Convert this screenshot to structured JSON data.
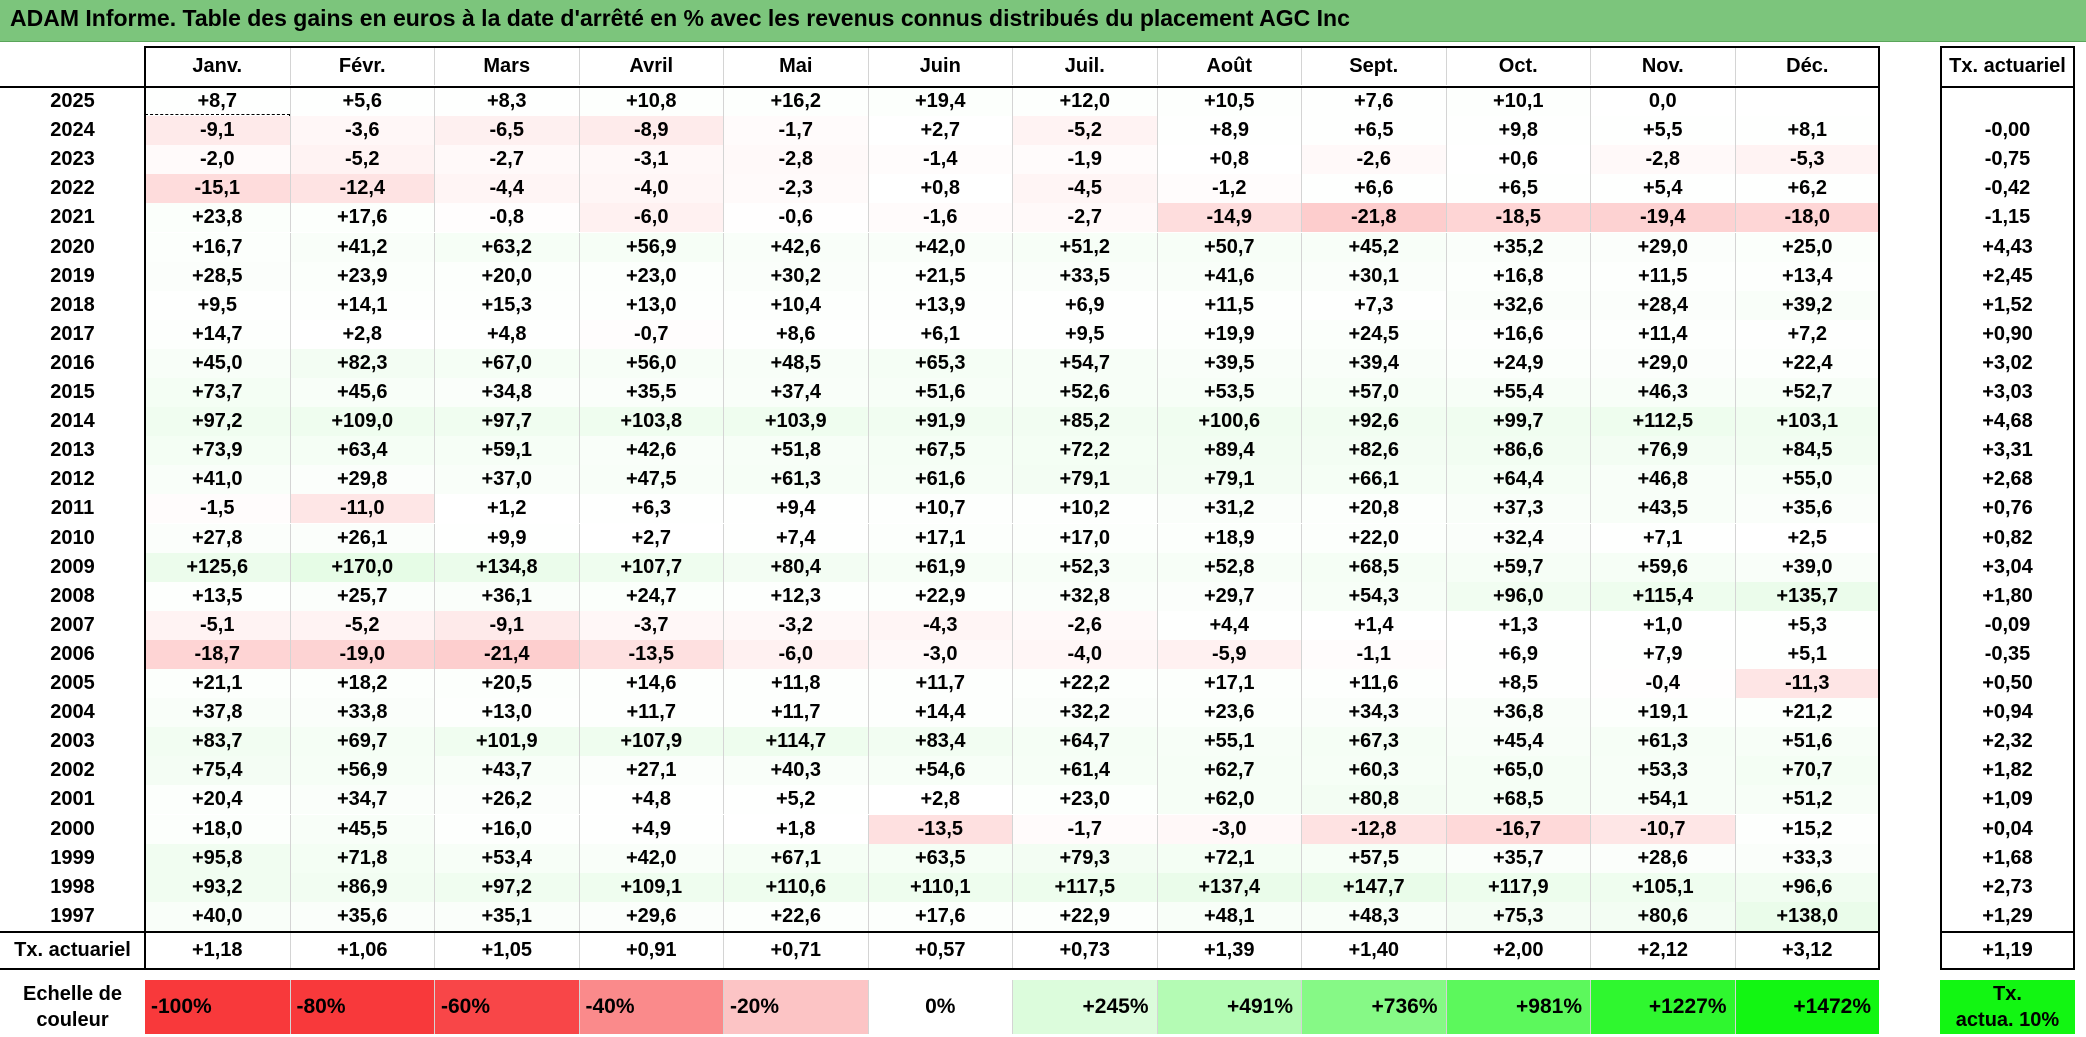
{
  "title": "ADAM Informe. Table des gains en euros à la date d'arrêté en % avec les revenus connus distribués du placement AGC Inc",
  "months": [
    "Janv.",
    "Févr.",
    "Mars",
    "Avril",
    "Mai",
    "Juin",
    "Juil.",
    "Août",
    "Sept.",
    "Oct.",
    "Nov.",
    "Déc."
  ],
  "rate_header": "Tx. actuariel",
  "rows": [
    {
      "year": "2025",
      "values": [
        "+8,7",
        "+5,6",
        "+8,3",
        "+10,8",
        "+16,2",
        "+19,4",
        "+12,0",
        "+10,5",
        "+7,6",
        "+10,1",
        "0,0",
        ""
      ],
      "rate": ""
    },
    {
      "year": "2024",
      "values": [
        "-9,1",
        "-3,6",
        "-6,5",
        "-8,9",
        "-1,7",
        "+2,7",
        "-5,2",
        "+8,9",
        "+6,5",
        "+9,8",
        "+5,5",
        "+8,1"
      ],
      "rate": "-0,00"
    },
    {
      "year": "2023",
      "values": [
        "-2,0",
        "-5,2",
        "-2,7",
        "-3,1",
        "-2,8",
        "-1,4",
        "-1,9",
        "+0,8",
        "-2,6",
        "+0,6",
        "-2,8",
        "-5,3"
      ],
      "rate": "-0,75"
    },
    {
      "year": "2022",
      "values": [
        "-15,1",
        "-12,4",
        "-4,4",
        "-4,0",
        "-2,3",
        "+0,8",
        "-4,5",
        "-1,2",
        "+6,6",
        "+6,5",
        "+5,4",
        "+6,2"
      ],
      "rate": "-0,42"
    },
    {
      "year": "2021",
      "values": [
        "+23,8",
        "+17,6",
        "-0,8",
        "-6,0",
        "-0,6",
        "-1,6",
        "-2,7",
        "-14,9",
        "-21,8",
        "-18,5",
        "-19,4",
        "-18,0"
      ],
      "rate": "-1,15"
    },
    {
      "year": "2020",
      "values": [
        "+16,7",
        "+41,2",
        "+63,2",
        "+56,9",
        "+42,6",
        "+42,0",
        "+51,2",
        "+50,7",
        "+45,2",
        "+35,2",
        "+29,0",
        "+25,0"
      ],
      "rate": "+4,43"
    },
    {
      "year": "2019",
      "values": [
        "+28,5",
        "+23,9",
        "+20,0",
        "+23,0",
        "+30,2",
        "+21,5",
        "+33,5",
        "+41,6",
        "+30,1",
        "+16,8",
        "+11,5",
        "+13,4"
      ],
      "rate": "+2,45"
    },
    {
      "year": "2018",
      "values": [
        "+9,5",
        "+14,1",
        "+15,3",
        "+13,0",
        "+10,4",
        "+13,9",
        "+6,9",
        "+11,5",
        "+7,3",
        "+32,6",
        "+28,4",
        "+39,2"
      ],
      "rate": "+1,52"
    },
    {
      "year": "2017",
      "values": [
        "+14,7",
        "+2,8",
        "+4,8",
        "-0,7",
        "+8,6",
        "+6,1",
        "+9,5",
        "+19,9",
        "+24,5",
        "+16,6",
        "+11,4",
        "+7,2"
      ],
      "rate": "+0,90"
    },
    {
      "year": "2016",
      "values": [
        "+45,0",
        "+82,3",
        "+67,0",
        "+56,0",
        "+48,5",
        "+65,3",
        "+54,7",
        "+39,5",
        "+39,4",
        "+24,9",
        "+29,0",
        "+22,4"
      ],
      "rate": "+3,02"
    },
    {
      "year": "2015",
      "values": [
        "+73,7",
        "+45,6",
        "+34,8",
        "+35,5",
        "+37,4",
        "+51,6",
        "+52,6",
        "+53,5",
        "+57,0",
        "+55,4",
        "+46,3",
        "+52,7"
      ],
      "rate": "+3,03"
    },
    {
      "year": "2014",
      "values": [
        "+97,2",
        "+109,0",
        "+97,7",
        "+103,8",
        "+103,9",
        "+91,9",
        "+85,2",
        "+100,6",
        "+92,6",
        "+99,7",
        "+112,5",
        "+103,1"
      ],
      "rate": "+4,68"
    },
    {
      "year": "2013",
      "values": [
        "+73,9",
        "+63,4",
        "+59,1",
        "+42,6",
        "+51,8",
        "+67,5",
        "+72,2",
        "+89,4",
        "+82,6",
        "+86,6",
        "+76,9",
        "+84,5"
      ],
      "rate": "+3,31"
    },
    {
      "year": "2012",
      "values": [
        "+41,0",
        "+29,8",
        "+37,0",
        "+47,5",
        "+61,3",
        "+61,6",
        "+79,1",
        "+79,1",
        "+66,1",
        "+64,4",
        "+46,8",
        "+55,0"
      ],
      "rate": "+2,68"
    },
    {
      "year": "2011",
      "values": [
        "-1,5",
        "-11,0",
        "+1,2",
        "+6,3",
        "+9,4",
        "+10,7",
        "+10,2",
        "+31,2",
        "+20,8",
        "+37,3",
        "+43,5",
        "+35,6"
      ],
      "rate": "+0,76"
    },
    {
      "year": "2010",
      "values": [
        "+27,8",
        "+26,1",
        "+9,9",
        "+2,7",
        "+7,4",
        "+17,1",
        "+17,0",
        "+18,9",
        "+22,0",
        "+32,4",
        "+7,1",
        "+2,5"
      ],
      "rate": "+0,82"
    },
    {
      "year": "2009",
      "values": [
        "+125,6",
        "+170,0",
        "+134,8",
        "+107,7",
        "+80,4",
        "+61,9",
        "+52,3",
        "+52,8",
        "+68,5",
        "+59,7",
        "+59,6",
        "+39,0"
      ],
      "rate": "+3,04"
    },
    {
      "year": "2008",
      "values": [
        "+13,5",
        "+25,7",
        "+36,1",
        "+24,7",
        "+12,3",
        "+22,9",
        "+32,8",
        "+29,7",
        "+54,3",
        "+96,0",
        "+115,4",
        "+135,7"
      ],
      "rate": "+1,80"
    },
    {
      "year": "2007",
      "values": [
        "-5,1",
        "-5,2",
        "-9,1",
        "-3,7",
        "-3,2",
        "-4,3",
        "-2,6",
        "+4,4",
        "+1,4",
        "+1,3",
        "+1,0",
        "+5,3"
      ],
      "rate": "-0,09"
    },
    {
      "year": "2006",
      "values": [
        "-18,7",
        "-19,0",
        "-21,4",
        "-13,5",
        "-6,0",
        "-3,0",
        "-4,0",
        "-5,9",
        "-1,1",
        "+6,9",
        "+7,9",
        "+5,1"
      ],
      "rate": "-0,35"
    },
    {
      "year": "2005",
      "values": [
        "+21,1",
        "+18,2",
        "+20,5",
        "+14,6",
        "+11,8",
        "+11,7",
        "+22,2",
        "+17,1",
        "+11,6",
        "+8,5",
        "-0,4",
        "-11,3"
      ],
      "rate": "+0,50"
    },
    {
      "year": "2004",
      "values": [
        "+37,8",
        "+33,8",
        "+13,0",
        "+11,7",
        "+11,7",
        "+14,4",
        "+32,2",
        "+23,6",
        "+34,3",
        "+36,8",
        "+19,1",
        "+21,2"
      ],
      "rate": "+0,94"
    },
    {
      "year": "2003",
      "values": [
        "+83,7",
        "+69,7",
        "+101,9",
        "+107,9",
        "+114,7",
        "+83,4",
        "+64,7",
        "+55,1",
        "+67,3",
        "+45,4",
        "+61,3",
        "+51,6"
      ],
      "rate": "+2,32"
    },
    {
      "year": "2002",
      "values": [
        "+75,4",
        "+56,9",
        "+43,7",
        "+27,1",
        "+40,3",
        "+54,6",
        "+61,4",
        "+62,7",
        "+60,3",
        "+65,0",
        "+53,3",
        "+70,7"
      ],
      "rate": "+1,82"
    },
    {
      "year": "2001",
      "values": [
        "+20,4",
        "+34,7",
        "+26,2",
        "+4,8",
        "+5,2",
        "+2,8",
        "+23,0",
        "+62,0",
        "+80,8",
        "+68,5",
        "+54,1",
        "+51,2"
      ],
      "rate": "+1,09"
    },
    {
      "year": "2000",
      "values": [
        "+18,0",
        "+45,5",
        "+16,0",
        "+4,9",
        "+1,8",
        "-13,5",
        "-1,7",
        "-3,0",
        "-12,8",
        "-16,7",
        "-10,7",
        "+15,2"
      ],
      "rate": "+0,04"
    },
    {
      "year": "1999",
      "values": [
        "+95,8",
        "+71,8",
        "+53,4",
        "+42,0",
        "+67,1",
        "+63,5",
        "+79,3",
        "+72,1",
        "+57,5",
        "+35,7",
        "+28,6",
        "+33,3"
      ],
      "rate": "+1,68"
    },
    {
      "year": "1998",
      "values": [
        "+93,2",
        "+86,9",
        "+97,2",
        "+109,1",
        "+110,6",
        "+110,1",
        "+117,5",
        "+137,4",
        "+147,7",
        "+117,9",
        "+105,1",
        "+96,6"
      ],
      "rate": "+2,73"
    },
    {
      "year": "1997",
      "values": [
        "+40,0",
        "+35,6",
        "+35,1",
        "+29,6",
        "+22,6",
        "+17,6",
        "+22,9",
        "+48,1",
        "+48,3",
        "+75,3",
        "+80,6",
        "+138,0"
      ],
      "rate": "+1,29"
    }
  ],
  "footer": {
    "label": "Tx. actuariel",
    "values": [
      "+1,18",
      "+1,06",
      "+1,05",
      "+0,91",
      "+0,71",
      "+0,57",
      "+0,73",
      "+1,39",
      "+1,40",
      "+2,00",
      "+2,12",
      "+3,12"
    ],
    "rate": "+1,19"
  },
  "scale": {
    "label_line1": "Echelle de",
    "label_line2": "couleur",
    "items": [
      {
        "text": "-100%",
        "color": "#f8393b",
        "align": "left"
      },
      {
        "text": "-80%",
        "color": "#f8393b",
        "align": "left"
      },
      {
        "text": "-60%",
        "color": "#f84648",
        "align": "left"
      },
      {
        "text": "-40%",
        "color": "#fa8a8b",
        "align": "left"
      },
      {
        "text": "-20%",
        "color": "#fcc4c5",
        "align": "left"
      },
      {
        "text": "0%",
        "color": "#ffffff",
        "align": "center"
      },
      {
        "text": "+245%",
        "color": "#dcfcdc",
        "align": "right"
      },
      {
        "text": "+491%",
        "color": "#b4fbb4",
        "align": "right"
      },
      {
        "text": "+736%",
        "color": "#86f986",
        "align": "right"
      },
      {
        "text": "+981%",
        "color": "#5cf85c",
        "align": "right"
      },
      {
        "text": "+1227%",
        "color": "#2ff72f",
        "align": "right"
      },
      {
        "text": "+1472%",
        "color": "#12f612",
        "align": "right"
      }
    ],
    "rate_line1": "Tx.",
    "rate_line2": "actua. 10%",
    "rate_color": "#12f612"
  }
}
